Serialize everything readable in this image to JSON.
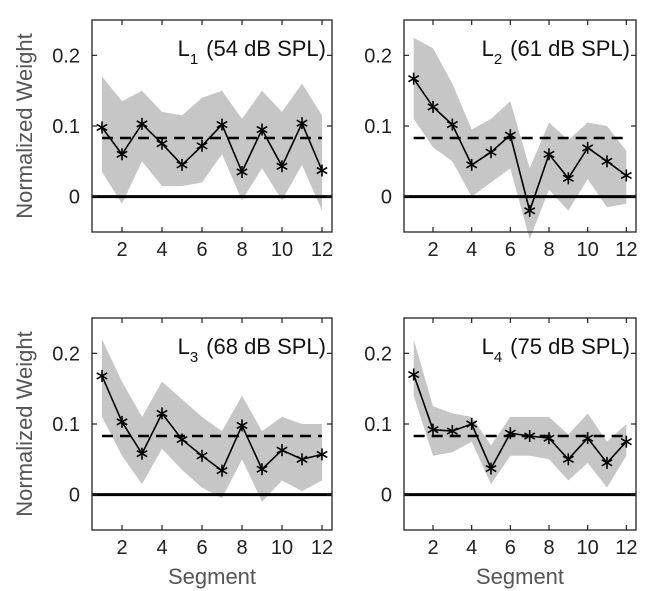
{
  "chart_data": [
    {
      "type": "line",
      "title_main": "L",
      "title_sub": "1",
      "title_rest": "(54 dB SPL)",
      "ylabel": "Normalized Weight",
      "xlabel": "",
      "x": [
        1,
        2,
        3,
        4,
        5,
        6,
        7,
        8,
        9,
        10,
        11,
        12
      ],
      "values": [
        0.098,
        0.06,
        0.103,
        0.075,
        0.045,
        0.072,
        0.102,
        0.035,
        0.095,
        0.043,
        0.104,
        0.037
      ],
      "band_upper": [
        0.17,
        0.135,
        0.15,
        0.12,
        0.115,
        0.14,
        0.15,
        0.11,
        0.15,
        0.12,
        0.16,
        0.115
      ],
      "band_lower": [
        0.035,
        -0.01,
        0.05,
        0.015,
        0.015,
        0.02,
        0.06,
        -0.005,
        0.04,
        -0.005,
        0.045,
        -0.02
      ],
      "reference": 0.083,
      "xticks": [
        2,
        4,
        6,
        8,
        10,
        12
      ],
      "yticks": [
        0,
        0.1,
        0.2
      ],
      "ytick_labels": [
        "0",
        "0.1",
        "0.2"
      ],
      "xlim": [
        0.5,
        12.5
      ],
      "ylim": [
        -0.05,
        0.25
      ]
    },
    {
      "type": "line",
      "title_main": "L",
      "title_sub": "2",
      "title_rest": "(61 dB SPL)",
      "ylabel": "",
      "xlabel": "",
      "x": [
        1,
        2,
        3,
        4,
        5,
        6,
        7,
        8,
        9,
        10,
        11,
        12
      ],
      "values": [
        0.167,
        0.127,
        0.102,
        0.045,
        0.063,
        0.087,
        -0.02,
        0.06,
        0.026,
        0.069,
        0.05,
        0.03
      ],
      "band_upper": [
        0.225,
        0.21,
        0.16,
        0.095,
        0.11,
        0.135,
        0.04,
        0.105,
        0.08,
        0.105,
        0.1,
        0.065
      ],
      "band_lower": [
        0.11,
        0.07,
        0.05,
        0.0,
        0.02,
        0.04,
        -0.06,
        0.01,
        -0.02,
        0.025,
        -0.015,
        -0.01
      ],
      "reference": 0.083,
      "xticks": [
        2,
        4,
        6,
        8,
        10,
        12
      ],
      "yticks": [
        0,
        0.1,
        0.2
      ],
      "ytick_labels": [
        "0",
        "0.1",
        "0.2"
      ],
      "xlim": [
        0.5,
        12.5
      ],
      "ylim": [
        -0.05,
        0.25
      ]
    },
    {
      "type": "line",
      "title_main": "L",
      "title_sub": "3",
      "title_rest": "(68 dB SPL)",
      "ylabel": "Normalized Weight",
      "xlabel": "Segment",
      "x": [
        1,
        2,
        3,
        4,
        5,
        6,
        7,
        8,
        9,
        10,
        11,
        12
      ],
      "values": [
        0.168,
        0.103,
        0.058,
        0.115,
        0.078,
        0.055,
        0.034,
        0.098,
        0.036,
        0.063,
        0.05,
        0.057
      ],
      "band_upper": [
        0.22,
        0.16,
        0.11,
        0.16,
        0.135,
        0.11,
        0.09,
        0.14,
        0.09,
        0.11,
        0.1,
        0.1
      ],
      "band_lower": [
        0.11,
        0.055,
        0.015,
        0.065,
        0.035,
        0.01,
        -0.005,
        0.05,
        -0.01,
        0.02,
        0.005,
        0.02
      ],
      "reference": 0.083,
      "xticks": [
        2,
        4,
        6,
        8,
        10,
        12
      ],
      "yticks": [
        0,
        0.1,
        0.2
      ],
      "ytick_labels": [
        "0",
        "0.1",
        "0.2"
      ],
      "xlim": [
        0.5,
        12.5
      ],
      "ylim": [
        -0.05,
        0.25
      ]
    },
    {
      "type": "line",
      "title_main": "L",
      "title_sub": "4",
      "title_rest": "(75 dB SPL)",
      "ylabel": "",
      "xlabel": "Segment",
      "x": [
        1,
        2,
        3,
        4,
        5,
        6,
        7,
        8,
        9,
        10,
        11,
        12
      ],
      "values": [
        0.17,
        0.092,
        0.09,
        0.1,
        0.037,
        0.087,
        0.083,
        0.08,
        0.05,
        0.08,
        0.045,
        0.075
      ],
      "band_upper": [
        0.22,
        0.125,
        0.115,
        0.11,
        0.07,
        0.11,
        0.11,
        0.11,
        0.085,
        0.115,
        0.075,
        0.1
      ],
      "band_lower": [
        0.14,
        0.055,
        0.06,
        0.075,
        0.015,
        0.055,
        0.055,
        0.05,
        0.02,
        0.045,
        0.01,
        0.055
      ],
      "reference": 0.083,
      "xticks": [
        2,
        4,
        6,
        8,
        10,
        12
      ],
      "yticks": [
        0,
        0.1,
        0.2
      ],
      "ytick_labels": [
        "0",
        "0.1",
        "0.2"
      ],
      "xlim": [
        0.5,
        12.5
      ],
      "ylim": [
        -0.05,
        0.25
      ]
    }
  ]
}
